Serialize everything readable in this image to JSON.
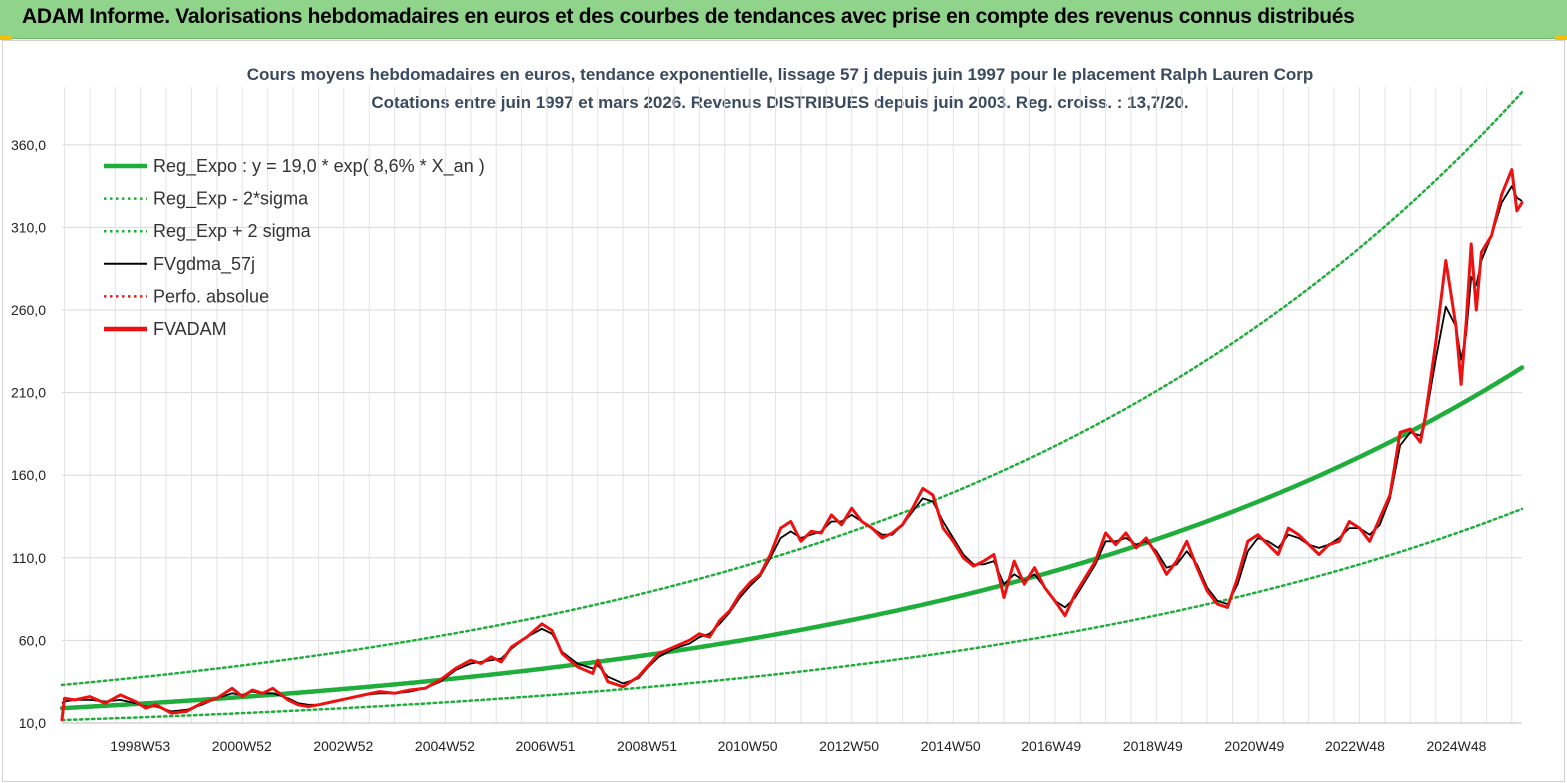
{
  "banner": {
    "title": "ADAM Informe. Valorisations hebdomadaires en euros et des courbes de tendances avec prise en compte des revenus connus distribués"
  },
  "chart_data": {
    "type": "line",
    "title": "Cours moyens hebdomadaires en euros, tendance exponentielle, lissage 57 j depuis juin 1997 pour le placement Ralph Lauren Corp",
    "subtitle": "Cotations entre juin 1997 et mars 2026. Revenus DISTRIBUES depuis juin 2003. Reg. croiss. : 13,7/20.",
    "xlabel": "",
    "ylabel": "",
    "ylim": [
      10,
      395
    ],
    "x_range": [
      1997.45,
      2026.2
    ],
    "y_ticks": [
      "10,0",
      "60,0",
      "110,0",
      "160,0",
      "210,0",
      "260,0",
      "310,0",
      "360,0"
    ],
    "y_tick_values": [
      10,
      60,
      110,
      160,
      210,
      260,
      310,
      360
    ],
    "x_ticks": [
      {
        "label": "1998W53",
        "x": 1998.99
      },
      {
        "label": "2000W52",
        "x": 2000.99
      },
      {
        "label": "2002W52",
        "x": 2002.99
      },
      {
        "label": "2004W52",
        "x": 2004.99
      },
      {
        "label": "2006W51",
        "x": 2006.97
      },
      {
        "label": "2008W51",
        "x": 2008.97
      },
      {
        "label": "2010W50",
        "x": 2010.95
      },
      {
        "label": "2012W50",
        "x": 2012.95
      },
      {
        "label": "2014W50",
        "x": 2014.95
      },
      {
        "label": "2016W49",
        "x": 2016.93
      },
      {
        "label": "2018W49",
        "x": 2018.93
      },
      {
        "label": "2020W49",
        "x": 2020.93
      },
      {
        "label": "2022W48",
        "x": 2022.91
      },
      {
        "label": "2024W48",
        "x": 2024.91
      }
    ],
    "grid": true,
    "legend_position": "top-left",
    "regression": {
      "a": 19.0,
      "rate": 0.086,
      "x0": 1997.45,
      "sigma_factor_low": 0.62,
      "sigma_factor_high": 1.74
    },
    "series": [
      {
        "name": "Reg_Expo : y = 19,0 * exp( 8,6% *  X_an )",
        "style": "thick",
        "color": "#1fae3c",
        "kind": "reg"
      },
      {
        "name": "Reg_Exp - 2*sigma",
        "style": "dotted",
        "color": "#1fae3c",
        "kind": "reg_low"
      },
      {
        "name": "Reg_Exp + 2 sigma",
        "style": "dotted",
        "color": "#1fae3c",
        "kind": "reg_high"
      },
      {
        "name": "FVgdma_57j",
        "style": "solid",
        "color": "#000000",
        "kind": "smooth"
      },
      {
        "name": "Perfo. absolue",
        "style": "dotted",
        "color": "#e02020",
        "kind": "none"
      },
      {
        "name": "FVADAM",
        "style": "thick",
        "color": "#ee1111",
        "kind": "price",
        "x": [
          1997.45,
          1997.5,
          1997.7,
          1998.0,
          1998.3,
          1998.6,
          1998.9,
          1999.1,
          1999.3,
          1999.6,
          1999.9,
          2000.2,
          2000.5,
          2000.8,
          2001.0,
          2001.2,
          2001.4,
          2001.6,
          2001.9,
          2002.1,
          2002.3,
          2002.5,
          2002.8,
          2003.1,
          2003.4,
          2003.7,
          2004.0,
          2004.3,
          2004.6,
          2004.9,
          2005.2,
          2005.5,
          2005.7,
          2005.9,
          2006.1,
          2006.3,
          2006.6,
          2006.9,
          2007.1,
          2007.3,
          2007.6,
          2007.9,
          2008.0,
          2008.2,
          2008.5,
          2008.8,
          2009.0,
          2009.2,
          2009.5,
          2009.8,
          2010.0,
          2010.2,
          2010.4,
          2010.6,
          2010.8,
          2011.0,
          2011.2,
          2011.4,
          2011.6,
          2011.8,
          2012.0,
          2012.2,
          2012.4,
          2012.6,
          2012.8,
          2013.0,
          2013.2,
          2013.4,
          2013.6,
          2013.8,
          2014.0,
          2014.2,
          2014.4,
          2014.6,
          2014.8,
          2015.0,
          2015.2,
          2015.4,
          2015.6,
          2015.8,
          2016.0,
          2016.2,
          2016.4,
          2016.6,
          2016.8,
          2017.0,
          2017.2,
          2017.4,
          2017.6,
          2017.8,
          2018.0,
          2018.2,
          2018.4,
          2018.6,
          2018.8,
          2019.0,
          2019.2,
          2019.4,
          2019.6,
          2019.8,
          2020.0,
          2020.2,
          2020.4,
          2020.6,
          2020.8,
          2021.0,
          2021.2,
          2021.4,
          2021.6,
          2021.8,
          2022.0,
          2022.2,
          2022.4,
          2022.6,
          2022.8,
          2023.0,
          2023.2,
          2023.4,
          2023.6,
          2023.8,
          2024.0,
          2024.2,
          2024.3,
          2024.5,
          2024.7,
          2024.9,
          2025.0,
          2025.1,
          2025.2,
          2025.3,
          2025.4,
          2025.6,
          2025.8,
          2026.0,
          2026.1,
          2026.2
        ],
        "values": [
          12,
          25,
          24,
          26,
          22,
          27,
          23,
          19,
          21,
          16,
          17,
          22,
          25,
          31,
          26,
          30,
          28,
          31,
          24,
          21,
          20,
          21,
          23,
          25,
          27,
          29,
          28,
          30,
          31,
          36,
          43,
          48,
          46,
          50,
          47,
          56,
          62,
          70,
          66,
          52,
          44,
          40,
          48,
          35,
          32,
          38,
          45,
          52,
          56,
          60,
          64,
          62,
          72,
          78,
          88,
          95,
          100,
          112,
          128,
          132,
          120,
          126,
          125,
          136,
          130,
          140,
          132,
          128,
          122,
          125,
          130,
          140,
          152,
          148,
          128,
          120,
          110,
          105,
          108,
          112,
          86,
          108,
          94,
          104,
          92,
          84,
          75,
          88,
          98,
          108,
          125,
          118,
          125,
          116,
          122,
          112,
          100,
          108,
          120,
          104,
          90,
          82,
          80,
          98,
          120,
          124,
          118,
          112,
          128,
          124,
          118,
          112,
          118,
          120,
          132,
          128,
          120,
          134,
          148,
          186,
          188,
          180,
          196,
          240,
          290,
          250,
          215,
          252,
          300,
          260,
          295,
          305,
          330,
          345,
          320,
          325
        ],
        "smooth_values": [
          22,
          23,
          24,
          24,
          23,
          24,
          22,
          20,
          20,
          17,
          18,
          21,
          25,
          28,
          27,
          29,
          28,
          28,
          25,
          22,
          21,
          21,
          23,
          25,
          27,
          28,
          28,
          29,
          31,
          35,
          42,
          46,
          47,
          48,
          49,
          55,
          62,
          67,
          64,
          53,
          46,
          43,
          45,
          38,
          34,
          37,
          44,
          50,
          55,
          58,
          62,
          64,
          70,
          77,
          86,
          93,
          99,
          110,
          122,
          126,
          122,
          124,
          126,
          132,
          132,
          136,
          132,
          128,
          124,
          124,
          130,
          138,
          146,
          144,
          132,
          122,
          112,
          106,
          106,
          108,
          94,
          100,
          96,
          100,
          92,
          84,
          80,
          86,
          96,
          106,
          120,
          120,
          122,
          118,
          120,
          114,
          104,
          106,
          114,
          106,
          92,
          84,
          82,
          94,
          114,
          122,
          120,
          116,
          124,
          122,
          118,
          116,
          118,
          122,
          128,
          128,
          124,
          130,
          146,
          178,
          186,
          184,
          194,
          230,
          262,
          250,
          230,
          245,
          280,
          275,
          290,
          305,
          325,
          335,
          328,
          326
        ]
      }
    ]
  }
}
